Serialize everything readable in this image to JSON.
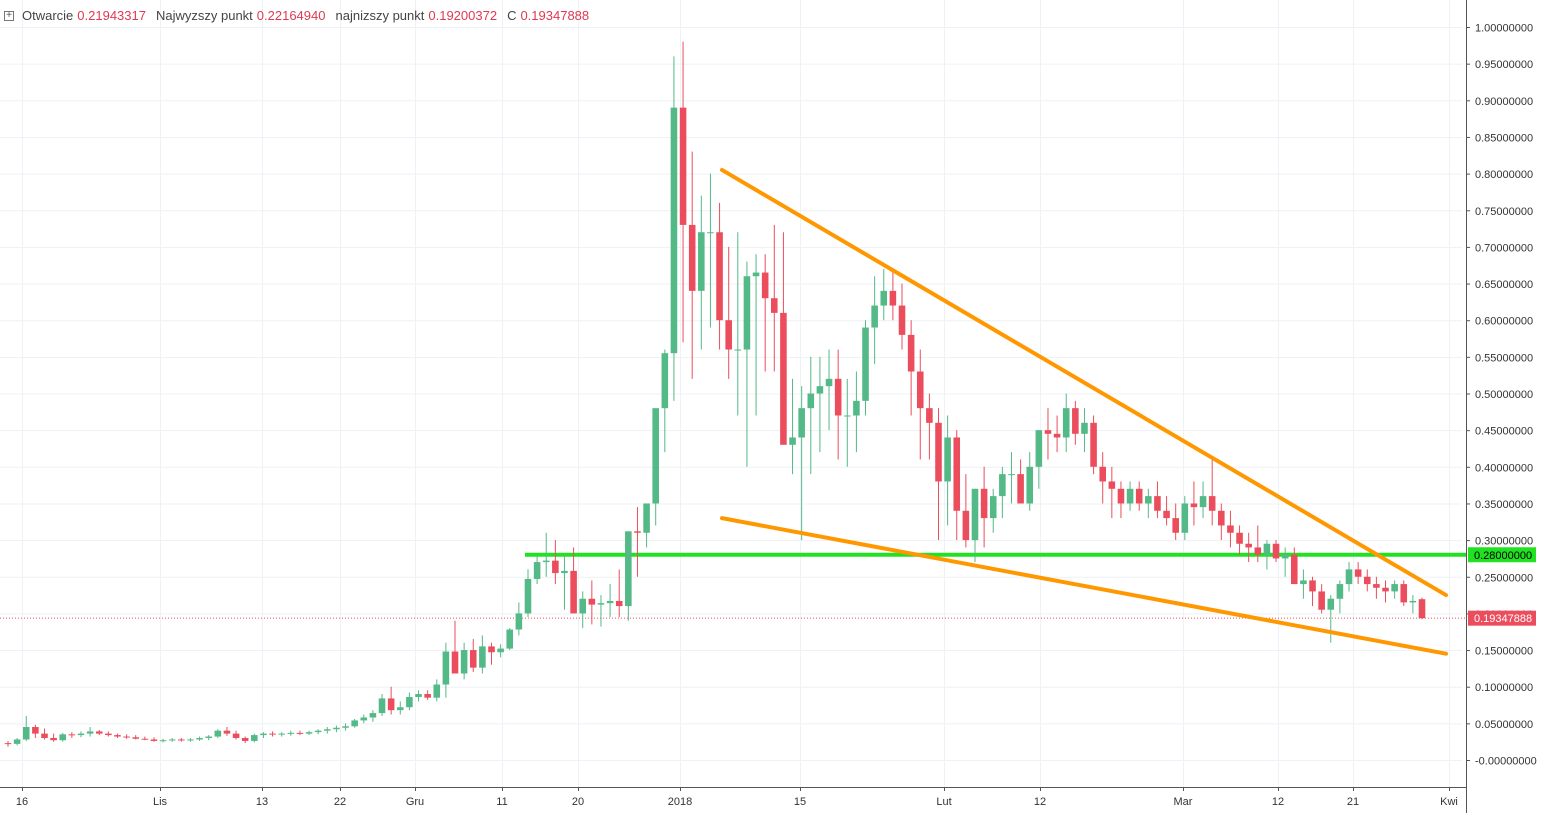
{
  "legend": {
    "toggle_symbol": "+",
    "open_label": "Otwarcie",
    "open_value": "0.21943317",
    "high_label": "Najwyzszy punkt",
    "high_value": "0.22164940",
    "low_label": "najnizszy punkt",
    "low_value": "0.19200372",
    "close_label": "C",
    "close_value": "0.19347888"
  },
  "colors": {
    "up": "#53b987",
    "down": "#eb4d5c",
    "trendline": "#ff9800",
    "level": "#22e022",
    "last_price": "#eb4d5c",
    "grid": "#eef1f5"
  },
  "chart_data": {
    "type": "candlestick",
    "x_tick_labels": [
      "16",
      "Lis",
      "13",
      "22",
      "Gru",
      "11",
      "20",
      "2018",
      "15",
      "Lut",
      "12",
      "Mar",
      "12",
      "21",
      "Kwi"
    ],
    "y_tick_labels": [
      "1.00000000",
      "0.95000000",
      "0.90000000",
      "0.85000000",
      "0.80000000",
      "0.75000000",
      "0.70000000",
      "0.65000000",
      "0.60000000",
      "0.55000000",
      "0.50000000",
      "0.45000000",
      "0.40000000",
      "0.35000000",
      "0.30000000",
      "0.25000000",
      "0.20000000",
      "0.15000000",
      "0.10000000",
      "0.05000000",
      "-0.00000000"
    ],
    "ylim": [
      -0.02,
      1.04
    ],
    "horizontal_level": {
      "value": 0.28,
      "label": "0.28000000"
    },
    "last_price": {
      "value": 0.19347888,
      "label": "0.19347888"
    },
    "candles_ohlc": [
      [
        0.023,
        0.026,
        0.018,
        0.022
      ],
      [
        0.022,
        0.03,
        0.02,
        0.028
      ],
      [
        0.028,
        0.06,
        0.026,
        0.045
      ],
      [
        0.045,
        0.048,
        0.03,
        0.036
      ],
      [
        0.036,
        0.043,
        0.028,
        0.03
      ],
      [
        0.03,
        0.036,
        0.025,
        0.027
      ],
      [
        0.027,
        0.037,
        0.025,
        0.035
      ],
      [
        0.035,
        0.038,
        0.03,
        0.034
      ],
      [
        0.034,
        0.039,
        0.031,
        0.036
      ],
      [
        0.036,
        0.045,
        0.032,
        0.039
      ],
      [
        0.039,
        0.041,
        0.034,
        0.036
      ],
      [
        0.036,
        0.039,
        0.032,
        0.034
      ],
      [
        0.034,
        0.036,
        0.03,
        0.032
      ],
      [
        0.032,
        0.035,
        0.029,
        0.031
      ],
      [
        0.031,
        0.034,
        0.028,
        0.029
      ],
      [
        0.029,
        0.032,
        0.027,
        0.028
      ],
      [
        0.028,
        0.031,
        0.025,
        0.026
      ],
      [
        0.026,
        0.029,
        0.024,
        0.027
      ],
      [
        0.027,
        0.03,
        0.025,
        0.028
      ],
      [
        0.028,
        0.03,
        0.025,
        0.027
      ],
      [
        0.027,
        0.03,
        0.025,
        0.028
      ],
      [
        0.028,
        0.032,
        0.026,
        0.03
      ],
      [
        0.03,
        0.034,
        0.027,
        0.032
      ],
      [
        0.032,
        0.042,
        0.03,
        0.04
      ],
      [
        0.04,
        0.045,
        0.033,
        0.036
      ],
      [
        0.036,
        0.04,
        0.028,
        0.03
      ],
      [
        0.03,
        0.032,
        0.023,
        0.026
      ],
      [
        0.026,
        0.036,
        0.024,
        0.034
      ],
      [
        0.034,
        0.038,
        0.03,
        0.036
      ],
      [
        0.036,
        0.039,
        0.032,
        0.035
      ],
      [
        0.035,
        0.038,
        0.032,
        0.036
      ],
      [
        0.036,
        0.04,
        0.033,
        0.037
      ],
      [
        0.037,
        0.04,
        0.034,
        0.036
      ],
      [
        0.036,
        0.04,
        0.034,
        0.038
      ],
      [
        0.038,
        0.042,
        0.035,
        0.04
      ],
      [
        0.04,
        0.045,
        0.036,
        0.042
      ],
      [
        0.042,
        0.047,
        0.038,
        0.044
      ],
      [
        0.044,
        0.05,
        0.04,
        0.046
      ],
      [
        0.046,
        0.056,
        0.044,
        0.054
      ],
      [
        0.054,
        0.062,
        0.05,
        0.058
      ],
      [
        0.058,
        0.068,
        0.052,
        0.064
      ],
      [
        0.064,
        0.09,
        0.06,
        0.084
      ],
      [
        0.084,
        0.1,
        0.062,
        0.068
      ],
      [
        0.068,
        0.08,
        0.062,
        0.072
      ],
      [
        0.072,
        0.092,
        0.068,
        0.086
      ],
      [
        0.086,
        0.095,
        0.08,
        0.09
      ],
      [
        0.09,
        0.095,
        0.082,
        0.085
      ],
      [
        0.085,
        0.11,
        0.08,
        0.103
      ],
      [
        0.103,
        0.16,
        0.085,
        0.148
      ],
      [
        0.148,
        0.19,
        0.13,
        0.118
      ],
      [
        0.118,
        0.16,
        0.11,
        0.15
      ],
      [
        0.15,
        0.165,
        0.12,
        0.126
      ],
      [
        0.126,
        0.17,
        0.118,
        0.155
      ],
      [
        0.155,
        0.16,
        0.13,
        0.147
      ],
      [
        0.147,
        0.158,
        0.14,
        0.152
      ],
      [
        0.152,
        0.18,
        0.15,
        0.178
      ],
      [
        0.178,
        0.215,
        0.17,
        0.2
      ],
      [
        0.2,
        0.26,
        0.195,
        0.247
      ],
      [
        0.247,
        0.28,
        0.24,
        0.27
      ],
      [
        0.27,
        0.31,
        0.25,
        0.272
      ],
      [
        0.272,
        0.3,
        0.24,
        0.255
      ],
      [
        0.255,
        0.28,
        0.205,
        0.258
      ],
      [
        0.258,
        0.29,
        0.22,
        0.2
      ],
      [
        0.2,
        0.23,
        0.18,
        0.22
      ],
      [
        0.22,
        0.245,
        0.185,
        0.212
      ],
      [
        0.212,
        0.225,
        0.182,
        0.214
      ],
      [
        0.214,
        0.24,
        0.195,
        0.217
      ],
      [
        0.217,
        0.26,
        0.195,
        0.21
      ],
      [
        0.21,
        0.25,
        0.19,
        0.312
      ],
      [
        0.312,
        0.345,
        0.25,
        0.31
      ],
      [
        0.31,
        0.35,
        0.29,
        0.35
      ],
      [
        0.35,
        0.42,
        0.32,
        0.48
      ],
      [
        0.48,
        0.56,
        0.42,
        0.555
      ],
      [
        0.555,
        0.96,
        0.49,
        0.89
      ],
      [
        0.89,
        0.98,
        0.57,
        0.73
      ],
      [
        0.73,
        0.83,
        0.52,
        0.64
      ],
      [
        0.64,
        0.77,
        0.56,
        0.72
      ],
      [
        0.72,
        0.8,
        0.59,
        0.72
      ],
      [
        0.72,
        0.76,
        0.56,
        0.6
      ],
      [
        0.6,
        0.7,
        0.52,
        0.56
      ],
      [
        0.56,
        0.72,
        0.47,
        0.56
      ],
      [
        0.56,
        0.68,
        0.4,
        0.66
      ],
      [
        0.66,
        0.69,
        0.47,
        0.665
      ],
      [
        0.665,
        0.69,
        0.53,
        0.63
      ],
      [
        0.63,
        0.73,
        0.53,
        0.61
      ],
      [
        0.61,
        0.72,
        0.5,
        0.43
      ],
      [
        0.43,
        0.52,
        0.39,
        0.44
      ],
      [
        0.44,
        0.51,
        0.3,
        0.48
      ],
      [
        0.48,
        0.55,
        0.39,
        0.5
      ],
      [
        0.5,
        0.55,
        0.42,
        0.51
      ],
      [
        0.51,
        0.56,
        0.45,
        0.52
      ],
      [
        0.52,
        0.56,
        0.41,
        0.47
      ],
      [
        0.47,
        0.52,
        0.4,
        0.47
      ],
      [
        0.47,
        0.53,
        0.42,
        0.49
      ],
      [
        0.49,
        0.6,
        0.47,
        0.59
      ],
      [
        0.59,
        0.66,
        0.54,
        0.62
      ],
      [
        0.62,
        0.67,
        0.6,
        0.64
      ],
      [
        0.64,
        0.67,
        0.6,
        0.62
      ],
      [
        0.62,
        0.65,
        0.56,
        0.58
      ],
      [
        0.58,
        0.6,
        0.47,
        0.53
      ],
      [
        0.53,
        0.56,
        0.41,
        0.48
      ],
      [
        0.48,
        0.5,
        0.41,
        0.46
      ],
      [
        0.46,
        0.48,
        0.3,
        0.38
      ],
      [
        0.38,
        0.47,
        0.32,
        0.44
      ],
      [
        0.44,
        0.45,
        0.3,
        0.34
      ],
      [
        0.34,
        0.39,
        0.29,
        0.3
      ],
      [
        0.3,
        0.37,
        0.27,
        0.37
      ],
      [
        0.37,
        0.4,
        0.29,
        0.33
      ],
      [
        0.33,
        0.37,
        0.31,
        0.36
      ],
      [
        0.36,
        0.4,
        0.33,
        0.39
      ],
      [
        0.39,
        0.42,
        0.35,
        0.39
      ],
      [
        0.39,
        0.41,
        0.36,
        0.35
      ],
      [
        0.35,
        0.42,
        0.34,
        0.4
      ],
      [
        0.4,
        0.45,
        0.37,
        0.45
      ],
      [
        0.45,
        0.48,
        0.41,
        0.445
      ],
      [
        0.445,
        0.47,
        0.42,
        0.44
      ],
      [
        0.44,
        0.5,
        0.42,
        0.48
      ],
      [
        0.48,
        0.49,
        0.43,
        0.445
      ],
      [
        0.445,
        0.48,
        0.42,
        0.46
      ],
      [
        0.46,
        0.47,
        0.39,
        0.4
      ],
      [
        0.4,
        0.42,
        0.35,
        0.38
      ],
      [
        0.38,
        0.4,
        0.33,
        0.37
      ],
      [
        0.37,
        0.38,
        0.33,
        0.35
      ],
      [
        0.35,
        0.38,
        0.34,
        0.37
      ],
      [
        0.37,
        0.38,
        0.34,
        0.35
      ],
      [
        0.35,
        0.37,
        0.33,
        0.36
      ],
      [
        0.36,
        0.38,
        0.33,
        0.34
      ],
      [
        0.34,
        0.36,
        0.32,
        0.33
      ],
      [
        0.33,
        0.35,
        0.3,
        0.31
      ],
      [
        0.31,
        0.36,
        0.3,
        0.35
      ],
      [
        0.35,
        0.38,
        0.32,
        0.345
      ],
      [
        0.345,
        0.38,
        0.33,
        0.36
      ],
      [
        0.36,
        0.41,
        0.32,
        0.34
      ],
      [
        0.34,
        0.35,
        0.3,
        0.32
      ],
      [
        0.32,
        0.34,
        0.29,
        0.31
      ],
      [
        0.31,
        0.32,
        0.28,
        0.295
      ],
      [
        0.295,
        0.31,
        0.27,
        0.29
      ],
      [
        0.29,
        0.32,
        0.27,
        0.28
      ],
      [
        0.28,
        0.3,
        0.26,
        0.295
      ],
      [
        0.295,
        0.3,
        0.27,
        0.275
      ],
      [
        0.275,
        0.29,
        0.25,
        0.28
      ],
      [
        0.28,
        0.29,
        0.24,
        0.24
      ],
      [
        0.24,
        0.26,
        0.22,
        0.245
      ],
      [
        0.245,
        0.25,
        0.21,
        0.23
      ],
      [
        0.23,
        0.24,
        0.2,
        0.205
      ],
      [
        0.205,
        0.225,
        0.16,
        0.22
      ],
      [
        0.22,
        0.245,
        0.2,
        0.24
      ],
      [
        0.24,
        0.27,
        0.23,
        0.26
      ],
      [
        0.26,
        0.27,
        0.24,
        0.25
      ],
      [
        0.25,
        0.26,
        0.23,
        0.24
      ],
      [
        0.24,
        0.25,
        0.22,
        0.235
      ],
      [
        0.235,
        0.245,
        0.215,
        0.23
      ],
      [
        0.23,
        0.245,
        0.22,
        0.24
      ],
      [
        0.24,
        0.245,
        0.21,
        0.215
      ],
      [
        0.215,
        0.225,
        0.2,
        0.217
      ],
      [
        0.2194,
        0.2216,
        0.192,
        0.1935
      ]
    ],
    "trendlines": [
      {
        "name": "upper",
        "points": [
          [
            0.805,
            0.805
          ],
          [
            0.225,
            0.225
          ]
        ]
      },
      {
        "name": "lower",
        "points": [
          [
            0.33,
            0.33
          ],
          [
            0.145,
            0.145
          ]
        ]
      }
    ]
  }
}
